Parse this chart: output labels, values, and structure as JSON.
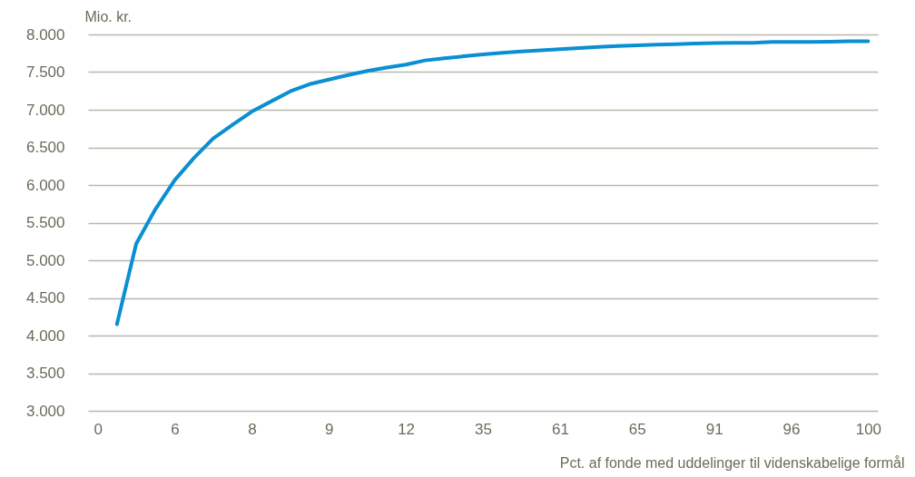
{
  "chart_data": {
    "type": "line",
    "xlabel": "Pct. af fonde med uddelinger til videnskabelige formål",
    "ylabel": "Mio. kr.",
    "categories": [
      "0",
      null,
      null,
      null,
      "6",
      null,
      null,
      null,
      "8",
      null,
      null,
      null,
      "9",
      null,
      null,
      null,
      "12",
      null,
      null,
      null,
      "35",
      null,
      null,
      null,
      "61",
      null,
      null,
      null,
      "65",
      null,
      null,
      null,
      "91",
      null,
      null,
      null,
      "96",
      null,
      null,
      null,
      "100"
    ],
    "series": [
      {
        "color": "#0a8fd3",
        "values": [
          null,
          4150,
          5220,
          5680,
          6065,
          6360,
          6620,
          6800,
          6975,
          7110,
          7245,
          7340,
          7400,
          7460,
          7515,
          7560,
          7600,
          7655,
          7685,
          7710,
          7735,
          7755,
          7775,
          7790,
          7805,
          7820,
          7835,
          7845,
          7855,
          7865,
          7870,
          7880,
          7885,
          7890,
          7890,
          7900,
          7900,
          7900,
          7905,
          7910,
          7910
        ]
      }
    ],
    "ylim": [
      3000,
      8000
    ],
    "yticks": [
      {
        "value": 3000,
        "label": "3.000"
      },
      {
        "value": 3500,
        "label": "3.500"
      },
      {
        "value": 4000,
        "label": "4.000"
      },
      {
        "value": 4500,
        "label": "4.500"
      },
      {
        "value": 5000,
        "label": "5.000"
      },
      {
        "value": 5500,
        "label": "5.500"
      },
      {
        "value": 6000,
        "label": "6.000"
      },
      {
        "value": 6500,
        "label": "6.500"
      },
      {
        "value": 7000,
        "label": "7.000"
      },
      {
        "value": 7500,
        "label": "7.500"
      },
      {
        "value": 8000,
        "label": "8.000"
      }
    ],
    "grid": "y",
    "marker": "none",
    "line_style": "solid",
    "legend": false
  }
}
